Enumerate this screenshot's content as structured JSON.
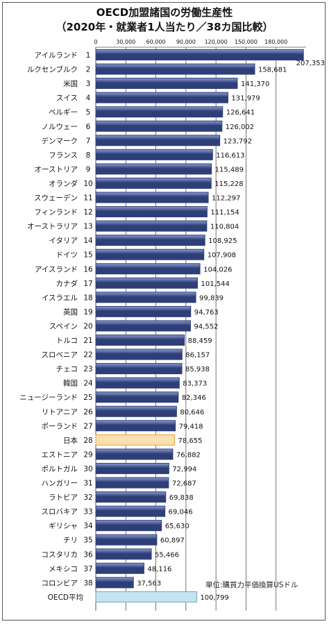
{
  "chart_data": {
    "type": "bar",
    "orientation": "horizontal",
    "title": "OECD加盟諸国の労働生産性",
    "subtitle": "（2020年・就業者1人当たり／38カ国比較）",
    "unit_note": "単位:購買力平価換算USドル",
    "xlim": [
      0,
      210000
    ],
    "x_ticks": [
      "0",
      "30,000",
      "60,000",
      "90,000",
      "120,000",
      "150,000",
      "180,000"
    ],
    "x_tick_values": [
      0,
      30000,
      60000,
      90000,
      120000,
      150000,
      180000
    ],
    "grid": true,
    "categories": [
      {
        "name": "アイルランド",
        "rank": "1",
        "value": 207353,
        "label": "207,353"
      },
      {
        "name": "ルクセンブルク",
        "rank": "2",
        "value": 158681,
        "label": "158,681"
      },
      {
        "name": "米国",
        "rank": "3",
        "value": 141370,
        "label": "141,370"
      },
      {
        "name": "スイス",
        "rank": "4",
        "value": 131979,
        "label": "131,979"
      },
      {
        "name": "ベルギー",
        "rank": "5",
        "value": 126641,
        "label": "126,641"
      },
      {
        "name": "ノルウェー",
        "rank": "6",
        "value": 126002,
        "label": "126,002"
      },
      {
        "name": "デンマーク",
        "rank": "7",
        "value": 123792,
        "label": "123,792"
      },
      {
        "name": "フランス",
        "rank": "8",
        "value": 116613,
        "label": "116,613"
      },
      {
        "name": "オーストリア",
        "rank": "9",
        "value": 115489,
        "label": "115,489"
      },
      {
        "name": "オランダ",
        "rank": "10",
        "value": 115228,
        "label": "115,228"
      },
      {
        "name": "スウェーデン",
        "rank": "11",
        "value": 112297,
        "label": "112,297"
      },
      {
        "name": "フィンランド",
        "rank": "12",
        "value": 111154,
        "label": "111,154"
      },
      {
        "name": "オーストラリア",
        "rank": "13",
        "value": 110804,
        "label": "110,804"
      },
      {
        "name": "イタリア",
        "rank": "14",
        "value": 108925,
        "label": "108,925"
      },
      {
        "name": "ドイツ",
        "rank": "15",
        "value": 107908,
        "label": "107,908"
      },
      {
        "name": "アイスランド",
        "rank": "16",
        "value": 104026,
        "label": "104,026"
      },
      {
        "name": "カナダ",
        "rank": "17",
        "value": 101544,
        "label": "101,544"
      },
      {
        "name": "イスラエル",
        "rank": "18",
        "value": 99839,
        "label": "99,839"
      },
      {
        "name": "英国",
        "rank": "19",
        "value": 94763,
        "label": "94,763"
      },
      {
        "name": "スペイン",
        "rank": "20",
        "value": 94552,
        "label": "94,552"
      },
      {
        "name": "トルコ",
        "rank": "21",
        "value": 88459,
        "label": "88,459"
      },
      {
        "name": "スロベニア",
        "rank": "22",
        "value": 86157,
        "label": "86,157"
      },
      {
        "name": "チェコ",
        "rank": "23",
        "value": 85938,
        "label": "85,938"
      },
      {
        "name": "韓国",
        "rank": "24",
        "value": 83373,
        "label": "83,373"
      },
      {
        "name": "ニュージーランド",
        "rank": "25",
        "value": 82346,
        "label": "82,346"
      },
      {
        "name": "リトアニア",
        "rank": "26",
        "value": 80646,
        "label": "80,646"
      },
      {
        "name": "ポーランド",
        "rank": "27",
        "value": 79418,
        "label": "79,418"
      },
      {
        "name": "日本",
        "rank": "28",
        "value": 78655,
        "label": "78,655",
        "highlight": "japan"
      },
      {
        "name": "エストニア",
        "rank": "29",
        "value": 76882,
        "label": "76,882"
      },
      {
        "name": "ポルトガル",
        "rank": "30",
        "value": 72994,
        "label": "72,994"
      },
      {
        "name": "ハンガリー",
        "rank": "31",
        "value": 72687,
        "label": "72,687"
      },
      {
        "name": "ラトビア",
        "rank": "32",
        "value": 69838,
        "label": "69,838"
      },
      {
        "name": "スロバキア",
        "rank": "33",
        "value": 69046,
        "label": "69,046"
      },
      {
        "name": "ギリシャ",
        "rank": "34",
        "value": 65630,
        "label": "65,630"
      },
      {
        "name": "チリ",
        "rank": "35",
        "value": 60897,
        "label": "60,897"
      },
      {
        "name": "コスタリカ",
        "rank": "36",
        "value": 55466,
        "label": "55,466"
      },
      {
        "name": "メキシコ",
        "rank": "37",
        "value": 48116,
        "label": "48,116"
      },
      {
        "name": "コロンビア",
        "rank": "38",
        "value": 37563,
        "label": "37,563"
      },
      {
        "name": "OECD平均",
        "rank": "",
        "value": 100799,
        "label": "100,799",
        "highlight": "average"
      }
    ],
    "colors": {
      "bar_dark": "#2e3f78",
      "bar_light": "#8c9cd2",
      "japan_fill": "#fde0b0",
      "japan_border": "#e8a040",
      "average_fill": "#c4e4f0",
      "average_border": "#6aa6c0",
      "grid": "#555555"
    }
  }
}
